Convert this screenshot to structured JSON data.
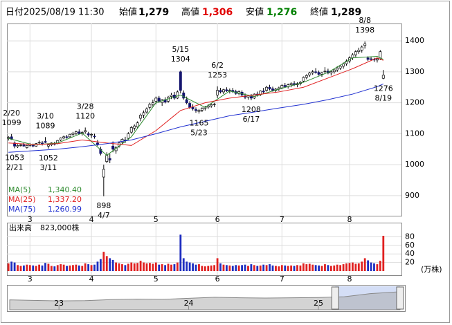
{
  "header": {
    "items": [
      {
        "label": "日付",
        "value": "2025/08/19 11:30"
      },
      {
        "label": "始値",
        "value": "1,279"
      },
      {
        "label": "高値",
        "value": "1,306",
        "color": "#e00000"
      },
      {
        "label": "安値",
        "value": "1,276",
        "color": "#008000"
      },
      {
        "label": "終値",
        "value": "1,289"
      }
    ]
  },
  "chart_data": [
    {
      "type": "candlestick",
      "ohlc": [
        [
          1085,
          1092,
          1078,
          1088
        ],
        [
          1090,
          1099,
          1080,
          1082
        ],
        [
          1070,
          1075,
          1053,
          1060
        ],
        [
          1058,
          1066,
          1054,
          1062
        ],
        [
          1062,
          1068,
          1058,
          1064
        ],
        [
          1064,
          1070,
          1058,
          1060
        ],
        [
          1055,
          1064,
          1052,
          1062
        ],
        [
          1062,
          1070,
          1058,
          1066
        ],
        [
          1062,
          1068,
          1056,
          1060
        ],
        [
          1060,
          1070,
          1058,
          1068
        ],
        [
          1070,
          1078,
          1064,
          1072
        ],
        [
          1070,
          1076,
          1062,
          1066
        ],
        [
          1075,
          1089,
          1070,
          1072
        ],
        [
          1060,
          1068,
          1052,
          1064
        ],
        [
          1064,
          1072,
          1060,
          1070
        ],
        [
          1068,
          1074,
          1062,
          1066
        ],
        [
          1068,
          1080,
          1066,
          1078
        ],
        [
          1080,
          1088,
          1076,
          1086
        ],
        [
          1086,
          1094,
          1082,
          1090
        ],
        [
          1090,
          1096,
          1084,
          1088
        ],
        [
          1090,
          1100,
          1086,
          1098
        ],
        [
          1098,
          1106,
          1092,
          1102
        ],
        [
          1102,
          1110,
          1096,
          1106
        ],
        [
          1106,
          1114,
          1098,
          1100
        ],
        [
          1100,
          1108,
          1094,
          1104
        ],
        [
          1106,
          1120,
          1100,
          1110
        ],
        [
          1100,
          1106,
          1090,
          1096
        ],
        [
          1096,
          1102,
          1086,
          1098
        ],
        [
          1092,
          1100,
          1084,
          1090
        ],
        [
          1070,
          1080,
          1060,
          1066
        ],
        [
          1050,
          1058,
          1030,
          1036
        ],
        [
          960,
          1000,
          898,
          985
        ],
        [
          1010,
          1040,
          1005,
          1030
        ],
        [
          1020,
          1035,
          1005,
          1015
        ],
        [
          1060,
          1075,
          1040,
          1050
        ],
        [
          1045,
          1060,
          1035,
          1055
        ],
        [
          1060,
          1075,
          1055,
          1070
        ],
        [
          1072,
          1085,
          1066,
          1082
        ],
        [
          1080,
          1090,
          1070,
          1078
        ],
        [
          1085,
          1105,
          1080,
          1100
        ],
        [
          1105,
          1125,
          1100,
          1120
        ],
        [
          1118,
          1130,
          1110,
          1125
        ],
        [
          1122,
          1140,
          1118,
          1135
        ],
        [
          1150,
          1165,
          1140,
          1160
        ],
        [
          1160,
          1175,
          1150,
          1168
        ],
        [
          1170,
          1185,
          1165,
          1180
        ],
        [
          1185,
          1200,
          1178,
          1195
        ],
        [
          1195,
          1210,
          1188,
          1200
        ],
        [
          1205,
          1220,
          1195,
          1215
        ],
        [
          1215,
          1222,
          1200,
          1205
        ],
        [
          1200,
          1212,
          1190,
          1210
        ],
        [
          1210,
          1218,
          1198,
          1202
        ],
        [
          1205,
          1222,
          1200,
          1218
        ],
        [
          1220,
          1232,
          1212,
          1225
        ],
        [
          1225,
          1235,
          1210,
          1215
        ],
        [
          1215,
          1240,
          1212,
          1235
        ],
        [
          1300,
          1304,
          1230,
          1240
        ],
        [
          1232,
          1240,
          1210,
          1215
        ],
        [
          1210,
          1220,
          1195,
          1200
        ],
        [
          1198,
          1205,
          1180,
          1185
        ],
        [
          1185,
          1195,
          1175,
          1180
        ],
        [
          1178,
          1185,
          1168,
          1175
        ],
        [
          1172,
          1180,
          1165,
          1176
        ],
        [
          1176,
          1185,
          1170,
          1182
        ],
        [
          1182,
          1190,
          1175,
          1186
        ],
        [
          1186,
          1195,
          1180,
          1190
        ],
        [
          1190,
          1198,
          1184,
          1194
        ],
        [
          1194,
          1200,
          1186,
          1196
        ],
        [
          1225,
          1253,
          1215,
          1240
        ],
        [
          1240,
          1248,
          1230,
          1235
        ],
        [
          1235,
          1245,
          1228,
          1242
        ],
        [
          1242,
          1250,
          1235,
          1238
        ],
        [
          1238,
          1246,
          1230,
          1240
        ],
        [
          1240,
          1248,
          1232,
          1236
        ],
        [
          1236,
          1242,
          1226,
          1230
        ],
        [
          1230,
          1240,
          1224,
          1236
        ],
        [
          1234,
          1240,
          1220,
          1225
        ],
        [
          1222,
          1230,
          1212,
          1218
        ],
        [
          1218,
          1226,
          1210,
          1222
        ],
        [
          1220,
          1228,
          1208,
          1215
        ],
        [
          1215,
          1230,
          1212,
          1228
        ],
        [
          1228,
          1236,
          1220,
          1225
        ],
        [
          1226,
          1240,
          1222,
          1238
        ],
        [
          1238,
          1248,
          1230,
          1235
        ],
        [
          1240,
          1255,
          1236,
          1250
        ],
        [
          1250,
          1258,
          1240,
          1245
        ],
        [
          1245,
          1252,
          1236,
          1240
        ],
        [
          1240,
          1248,
          1232,
          1244
        ],
        [
          1244,
          1252,
          1238,
          1248
        ],
        [
          1248,
          1260,
          1244,
          1256
        ],
        [
          1256,
          1264,
          1248,
          1252
        ],
        [
          1252,
          1262,
          1246,
          1258
        ],
        [
          1258,
          1266,
          1250,
          1262
        ],
        [
          1262,
          1270,
          1254,
          1258
        ],
        [
          1258,
          1266,
          1250,
          1262
        ],
        [
          1262,
          1270,
          1256,
          1266
        ],
        [
          1270,
          1285,
          1266,
          1282
        ],
        [
          1282,
          1292,
          1276,
          1288
        ],
        [
          1290,
          1300,
          1284,
          1296
        ],
        [
          1296,
          1306,
          1290,
          1300
        ],
        [
          1300,
          1312,
          1294,
          1298
        ],
        [
          1298,
          1304,
          1288,
          1292
        ],
        [
          1292,
          1300,
          1284,
          1296
        ],
        [
          1300,
          1315,
          1294,
          1302
        ],
        [
          1302,
          1310,
          1292,
          1296
        ],
        [
          1296,
          1304,
          1288,
          1300
        ],
        [
          1300,
          1310,
          1294,
          1306
        ],
        [
          1306,
          1318,
          1300,
          1312
        ],
        [
          1312,
          1322,
          1306,
          1318
        ],
        [
          1318,
          1330,
          1310,
          1326
        ],
        [
          1326,
          1340,
          1320,
          1335
        ],
        [
          1335,
          1350,
          1328,
          1345
        ],
        [
          1345,
          1360,
          1338,
          1355
        ],
        [
          1355,
          1370,
          1348,
          1365
        ],
        [
          1365,
          1378,
          1358,
          1370
        ],
        [
          1370,
          1385,
          1362,
          1380
        ],
        [
          1385,
          1398,
          1375,
          1390
        ],
        [
          1345,
          1350,
          1335,
          1340
        ],
        [
          1342,
          1348,
          1336,
          1340
        ],
        [
          1340,
          1345,
          1332,
          1338
        ],
        [
          1338,
          1344,
          1330,
          1342
        ],
        [
          1342,
          1370,
          1338,
          1365
        ],
        [
          1279,
          1306,
          1276,
          1289
        ]
      ],
      "up_color": "#ffffff",
      "down_color": "#14146e",
      "xlim": [
        -0.5,
        127.9
      ],
      "ylim": [
        835,
        1456
      ],
      "xticks": [
        {
          "value": 7,
          "label": "3"
        },
        {
          "value": 27,
          "label": "4"
        },
        {
          "value": 48,
          "label": "5"
        },
        {
          "value": 68,
          "label": "6"
        },
        {
          "value": 89,
          "label": "7"
        },
        {
          "value": 111,
          "label": "8"
        }
      ],
      "yticks": [
        900,
        1000,
        1100,
        1200,
        1300,
        1400
      ],
      "grid": true,
      "series": [
        {
          "name": "MA(5)",
          "color": "#2e8b2e",
          "latest_label": "1,340.40",
          "x": [
            0,
            8,
            16,
            24,
            32,
            40,
            48,
            56,
            64,
            72,
            80,
            88,
            96,
            104,
            112,
            120,
            122
          ],
          "values": [
            1085,
            1064,
            1070,
            1102,
            1030,
            1090,
            1200,
            1225,
            1185,
            1238,
            1220,
            1244,
            1266,
            1298,
            1345,
            1350,
            1340
          ]
        },
        {
          "name": "MA(25)",
          "color": "#e02020",
          "latest_label": "1,337.20",
          "x": [
            0,
            8,
            16,
            24,
            32,
            40,
            48,
            56,
            64,
            72,
            80,
            88,
            96,
            104,
            112,
            120,
            122
          ],
          "values": [
            1070,
            1065,
            1068,
            1080,
            1070,
            1062,
            1110,
            1175,
            1200,
            1215,
            1225,
            1235,
            1250,
            1280,
            1310,
            1345,
            1337
          ]
        },
        {
          "name": "MA(75)",
          "color": "#2030d0",
          "latest_label": "1,260.99",
          "x": [
            0,
            8,
            16,
            24,
            32,
            40,
            48,
            56,
            64,
            72,
            80,
            88,
            96,
            104,
            112,
            120,
            122
          ],
          "values": [
            1040,
            1045,
            1050,
            1058,
            1068,
            1080,
            1100,
            1122,
            1140,
            1158,
            1170,
            1183,
            1195,
            1210,
            1228,
            1252,
            1261
          ]
        }
      ],
      "annotations": [
        {
          "label": "2/20",
          "value": 1099,
          "x": 1
        },
        {
          "label": "2/21",
          "value": 1053,
          "x": 2
        },
        {
          "label": "3/10",
          "value": 1089,
          "x": 12
        },
        {
          "label": "3/11",
          "value": 1052,
          "x": 13
        },
        {
          "label": "3/28",
          "value": 1120,
          "x": 25
        },
        {
          "label": "4/7",
          "value": 898,
          "x": 31
        },
        {
          "label": "5/15",
          "value": 1304,
          "x": 56
        },
        {
          "label": "5/23",
          "value": 1165,
          "x": 62
        },
        {
          "label": "6/2",
          "value": 1253,
          "x": 68
        },
        {
          "label": "6/17",
          "value": 1208,
          "x": 79
        },
        {
          "label": "8/8",
          "value": 1398,
          "x": 116
        },
        {
          "label": "8/19",
          "value": 1276,
          "x": 122
        }
      ]
    },
    {
      "type": "bar",
      "title": "出来高",
      "title_value": "823,000株",
      "unit": "(万株)",
      "values": [
        18,
        22,
        20,
        14,
        12,
        13,
        15,
        14,
        13,
        12,
        15,
        13,
        19,
        17,
        12,
        11,
        14,
        16,
        15,
        12,
        13,
        14,
        15,
        13,
        12,
        18,
        16,
        14,
        15,
        22,
        28,
        45,
        35,
        30,
        26,
        20,
        18,
        16,
        14,
        17,
        20,
        18,
        19,
        24,
        20,
        18,
        19,
        17,
        20,
        15,
        16,
        14,
        17,
        15,
        16,
        20,
        85,
        30,
        22,
        20,
        18,
        15,
        16,
        12,
        11,
        12,
        13,
        14,
        30,
        18,
        15,
        14,
        13,
        12,
        14,
        13,
        14,
        15,
        12,
        16,
        14,
        12,
        13,
        15,
        14,
        16,
        13,
        12,
        11,
        14,
        13,
        12,
        13,
        12,
        14,
        13,
        18,
        16,
        17,
        15,
        14,
        13,
        12,
        16,
        14,
        12,
        13,
        15,
        14,
        16,
        18,
        19,
        20,
        17,
        18,
        22,
        30,
        25,
        20,
        18,
        16,
        24,
        82.3
      ],
      "up_color": "#e02020",
      "down_color": "#1e2ec0",
      "xlim": [
        -0.5,
        127.9
      ],
      "ylim": [
        0,
        113
      ],
      "yticks": [
        20,
        40,
        60,
        80
      ],
      "xticks": [
        {
          "value": 7,
          "label": "3"
        },
        {
          "value": 27,
          "label": "4"
        },
        {
          "value": 48,
          "label": "5"
        },
        {
          "value": 68,
          "label": "6"
        },
        {
          "value": 89,
          "label": "7"
        },
        {
          "value": 111,
          "label": "8"
        }
      ]
    },
    {
      "type": "area",
      "color": "#a8a8a8",
      "selection_color": "#b8c8f0",
      "x": [
        2022.62,
        2022.8,
        2023.0,
        2023.2,
        2023.4,
        2023.6,
        2023.8,
        2024.0,
        2024.2,
        2024.4,
        2024.6,
        2024.8,
        2025.0,
        2025.2,
        2025.4,
        2025.63
      ],
      "values": [
        980,
        960,
        940,
        950,
        990,
        1010,
        1000,
        1040,
        1080,
        1060,
        1050,
        1060,
        1070,
        1100,
        1220,
        1290
      ],
      "xlim": [
        2022.62,
        2025.63
      ],
      "ylim": [
        600,
        1500
      ],
      "selection": [
        2025.13,
        2025.63
      ],
      "xticks": [
        {
          "value": 2023,
          "label": "23"
        },
        {
          "value": 2024,
          "label": "24"
        },
        {
          "value": 2025,
          "label": "25"
        }
      ]
    }
  ]
}
